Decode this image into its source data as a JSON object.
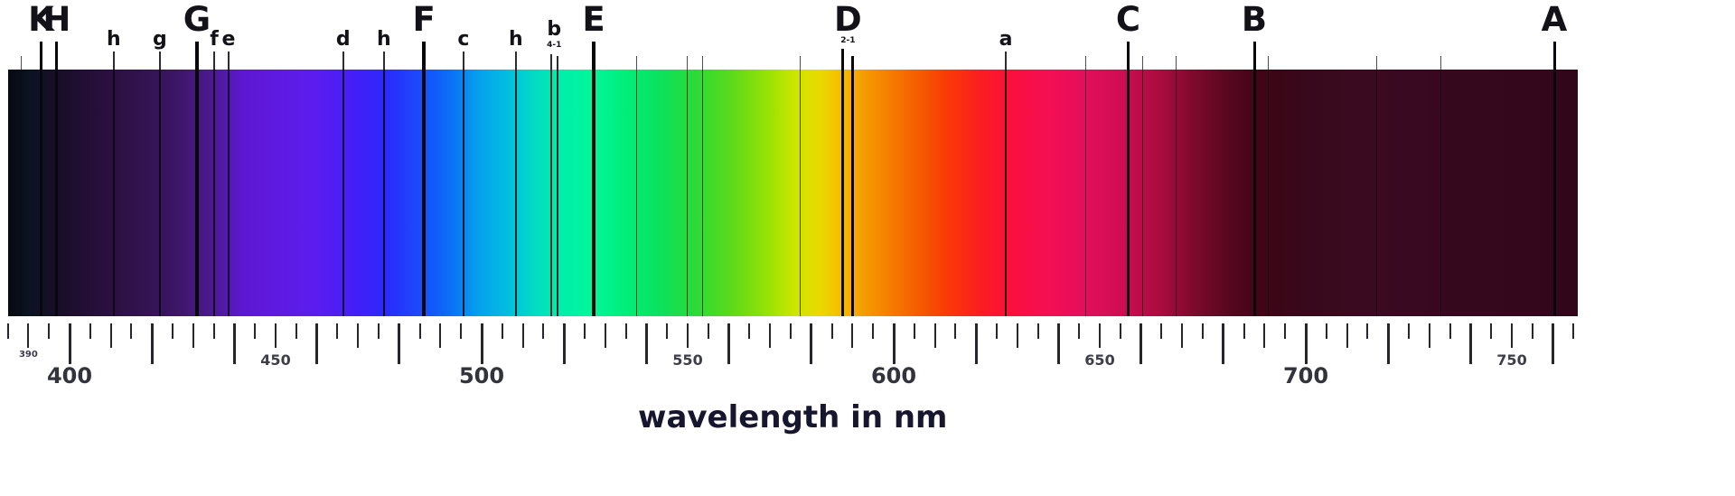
{
  "figure": {
    "background": "#ffffff"
  },
  "axis_title": {
    "text": "wavelength in nm",
    "color": "#16162e"
  },
  "spectrum": {
    "unit": "nm",
    "range_nm": [
      385,
      766
    ],
    "gradient_stops": [
      {
        "nm": 385,
        "color": "#070a10"
      },
      {
        "nm": 390,
        "color": "#0b1322"
      },
      {
        "nm": 398,
        "color": "#1a0e2a"
      },
      {
        "nm": 407,
        "color": "#270f3b"
      },
      {
        "nm": 416,
        "color": "#31124b"
      },
      {
        "nm": 425,
        "color": "#3b1563"
      },
      {
        "nm": 434,
        "color": "#4b1a8e"
      },
      {
        "nm": 442,
        "color": "#5c18cf"
      },
      {
        "nm": 451,
        "color": "#5f1ae2"
      },
      {
        "nm": 460,
        "color": "#5a1df0"
      },
      {
        "nm": 469,
        "color": "#441ef8"
      },
      {
        "nm": 477,
        "color": "#2a2bfb"
      },
      {
        "nm": 484,
        "color": "#1c48fb"
      },
      {
        "nm": 489,
        "color": "#0f5efa"
      },
      {
        "nm": 493,
        "color": "#0a74f4"
      },
      {
        "nm": 499,
        "color": "#05a0ec"
      },
      {
        "nm": 506,
        "color": "#03bce2"
      },
      {
        "nm": 513,
        "color": "#02dcc2"
      },
      {
        "nm": 519,
        "color": "#01eeaa"
      },
      {
        "nm": 526,
        "color": "#00f69c"
      },
      {
        "nm": 534,
        "color": "#00ef7e"
      },
      {
        "nm": 543,
        "color": "#0ae25e"
      },
      {
        "nm": 552,
        "color": "#2cda36"
      },
      {
        "nm": 561,
        "color": "#5eda19"
      },
      {
        "nm": 570,
        "color": "#9ce303"
      },
      {
        "nm": 576,
        "color": "#cce600"
      },
      {
        "nm": 582,
        "color": "#e9da00"
      },
      {
        "nm": 586,
        "color": "#f3c300"
      },
      {
        "nm": 593,
        "color": "#f59b00"
      },
      {
        "nm": 599,
        "color": "#f57d00"
      },
      {
        "nm": 606,
        "color": "#f55c00"
      },
      {
        "nm": 613,
        "color": "#f93a06"
      },
      {
        "nm": 621,
        "color": "#fb1d20"
      },
      {
        "nm": 629,
        "color": "#fb0f3e"
      },
      {
        "nm": 637,
        "color": "#f50f52"
      },
      {
        "nm": 646,
        "color": "#e40e5c"
      },
      {
        "nm": 655,
        "color": "#cf0d52"
      },
      {
        "nm": 664,
        "color": "#ad0c41"
      },
      {
        "nm": 673,
        "color": "#7c0a2c"
      },
      {
        "nm": 681,
        "color": "#5a0720"
      },
      {
        "nm": 688,
        "color": "#420517"
      },
      {
        "nm": 694,
        "color": "#3a0617"
      },
      {
        "nm": 701,
        "color": "#38081c"
      },
      {
        "nm": 712,
        "color": "#3a0a20"
      },
      {
        "nm": 725,
        "color": "#380920"
      },
      {
        "nm": 738,
        "color": "#36081e"
      },
      {
        "nm": 752,
        "color": "#35071d"
      },
      {
        "nm": 766,
        "color": "#30061a"
      }
    ],
    "fraunhofer_lines": [
      {
        "nm": 388.3,
        "w": 1
      },
      {
        "nm": 393.1,
        "w": 3,
        "label": "K",
        "size": "cap"
      },
      {
        "nm": 396.9,
        "w": 3,
        "label": "H",
        "size": "cap"
      },
      {
        "nm": 410.7,
        "w": 2,
        "label": "h",
        "size": "small"
      },
      {
        "nm": 421.9,
        "w": 2,
        "label": "g",
        "size": "small"
      },
      {
        "nm": 430.9,
        "w": 4,
        "label": "G",
        "size": "cap"
      },
      {
        "nm": 435.1,
        "w": 2,
        "label": "f",
        "size": "small"
      },
      {
        "nm": 438.6,
        "w": 2,
        "label": "e",
        "size": "small"
      },
      {
        "nm": 466.4,
        "w": 2,
        "label": "d",
        "size": "small"
      },
      {
        "nm": 476.3,
        "w": 2,
        "label": "h",
        "size": "small"
      },
      {
        "nm": 486.0,
        "w": 4,
        "label": "F",
        "size": "cap"
      },
      {
        "nm": 495.6,
        "w": 2,
        "label": "c",
        "size": "small"
      },
      {
        "nm": 508.3,
        "w": 2,
        "label": "h",
        "size": "small"
      },
      {
        "nm": 516.9,
        "w": 2,
        "label": "b",
        "size": "small",
        "sub": "4-1",
        "label_nm": 517.6
      },
      {
        "nm": 518.4,
        "w": 2
      },
      {
        "nm": 527.2,
        "w": 4,
        "label": "E",
        "size": "cap"
      },
      {
        "nm": 537.5,
        "w": 1
      },
      {
        "nm": 549.8,
        "w": 1
      },
      {
        "nm": 553.7,
        "w": 1
      },
      {
        "nm": 577.4,
        "w": 1
      },
      {
        "nm": 587.7,
        "w": 3,
        "label": "D",
        "size": "cap",
        "sub": "2-1",
        "label_nm": 588.9
      },
      {
        "nm": 590.1,
        "w": 3
      },
      {
        "nm": 627.2,
        "w": 2,
        "label": "a",
        "size": "small"
      },
      {
        "nm": 646.5,
        "w": 1
      },
      {
        "nm": 656.9,
        "w": 3,
        "label": "C",
        "size": "cap"
      },
      {
        "nm": 660.5,
        "w": 1
      },
      {
        "nm": 668.6,
        "w": 1
      },
      {
        "nm": 687.5,
        "w": 3,
        "label": "B",
        "size": "cap"
      },
      {
        "nm": 690.8,
        "w": 1
      },
      {
        "nm": 717.1,
        "w": 1
      },
      {
        "nm": 732.7,
        "w": 1
      },
      {
        "nm": 760.3,
        "w": 3,
        "label": "A",
        "size": "cap"
      }
    ]
  },
  "axis": {
    "tick_start_nm": 385,
    "tick_end_nm": 765,
    "tick_step_nm": 5,
    "tall_every_nm": 20,
    "medium_every_nm": 10,
    "tick_color": "#26262c",
    "labels": [
      {
        "nm": 390,
        "text": "390",
        "size": "tiny"
      },
      {
        "nm": 400,
        "text": "400",
        "size": "large"
      },
      {
        "nm": 450,
        "text": "450",
        "size": "small"
      },
      {
        "nm": 500,
        "text": "500",
        "size": "large"
      },
      {
        "nm": 550,
        "text": "550",
        "size": "small"
      },
      {
        "nm": 600,
        "text": "600",
        "size": "large"
      },
      {
        "nm": 650,
        "text": "650",
        "size": "small"
      },
      {
        "nm": 700,
        "text": "700",
        "size": "large"
      },
      {
        "nm": 750,
        "text": "750",
        "size": "small"
      }
    ]
  }
}
